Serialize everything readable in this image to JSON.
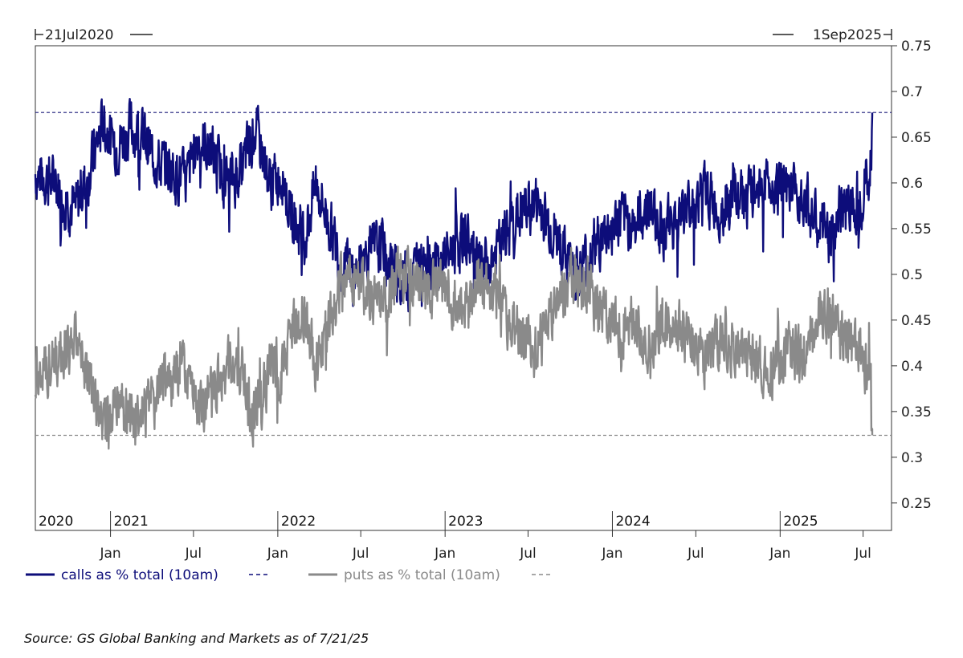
{
  "chart_data": {
    "type": "line",
    "date_range_labels": {
      "start": "21Jul2020",
      "end": "1Sep2025"
    },
    "x_start": "2020-07-21",
    "x_end": "2025-09-01",
    "ylim": [
      0.22,
      0.75
    ],
    "y_ticks": [
      "0.25",
      "0.3",
      "0.35",
      "0.4",
      "0.45",
      "0.5",
      "0.55",
      "0.6",
      "0.65",
      "0.7",
      "0.75"
    ],
    "year_labels": [
      {
        "label": "2020",
        "date": "2020-07-21"
      },
      {
        "label": "2021",
        "date": "2021-01-01"
      },
      {
        "label": "2022",
        "date": "2022-01-01"
      },
      {
        "label": "2023",
        "date": "2023-01-01"
      },
      {
        "label": "2024",
        "date": "2024-01-01"
      },
      {
        "label": "2025",
        "date": "2025-01-01"
      }
    ],
    "month_ticks": [
      {
        "label": "Jan",
        "date": "2021-01-01"
      },
      {
        "label": "Jul",
        "date": "2021-07-01"
      },
      {
        "label": "Jan",
        "date": "2022-01-01"
      },
      {
        "label": "Jul",
        "date": "2022-07-01"
      },
      {
        "label": "Jan",
        "date": "2023-01-01"
      },
      {
        "label": "Jul",
        "date": "2023-07-01"
      },
      {
        "label": "Jan",
        "date": "2024-01-01"
      },
      {
        "label": "Jul",
        "date": "2024-07-01"
      },
      {
        "label": "Jan",
        "date": "2025-01-01"
      },
      {
        "label": "Jul",
        "date": "2025-07-01"
      }
    ],
    "reference_lines": [
      {
        "series": "calls",
        "value": 0.677,
        "color": "#1a1a7a"
      },
      {
        "series": "puts",
        "value": 0.324,
        "color": "#8a8a8a"
      }
    ],
    "series": [
      {
        "name": "calls as % total (10am)",
        "color": "#0d0d7a",
        "points": [
          [
            "2020-07-21",
            0.61
          ],
          [
            "2020-09-01",
            0.6
          ],
          [
            "2020-10-15",
            0.57
          ],
          [
            "2020-11-15",
            0.61
          ],
          [
            "2020-12-15",
            0.665
          ],
          [
            "2021-01-15",
            0.64
          ],
          [
            "2021-02-15",
            0.66
          ],
          [
            "2021-03-15",
            0.65
          ],
          [
            "2021-04-15",
            0.62
          ],
          [
            "2021-05-15",
            0.615
          ],
          [
            "2021-06-15",
            0.6
          ],
          [
            "2021-07-10",
            0.65
          ],
          [
            "2021-08-15",
            0.63
          ],
          [
            "2021-09-15",
            0.6
          ],
          [
            "2021-10-15",
            0.615
          ],
          [
            "2021-11-10",
            0.66
          ],
          [
            "2021-11-25",
            0.64
          ],
          [
            "2021-12-15",
            0.6
          ],
          [
            "2022-01-10",
            0.61
          ],
          [
            "2022-02-01",
            0.56
          ],
          [
            "2022-03-01",
            0.54
          ],
          [
            "2022-03-25",
            0.6
          ],
          [
            "2022-04-20",
            0.56
          ],
          [
            "2022-05-20",
            0.51
          ],
          [
            "2022-06-20",
            0.5
          ],
          [
            "2022-07-20",
            0.525
          ],
          [
            "2022-08-20",
            0.53
          ],
          [
            "2022-09-20",
            0.495
          ],
          [
            "2022-10-20",
            0.5
          ],
          [
            "2022-11-20",
            0.525
          ],
          [
            "2022-12-20",
            0.51
          ],
          [
            "2023-01-20",
            0.53
          ],
          [
            "2023-02-20",
            0.54
          ],
          [
            "2023-03-20",
            0.5
          ],
          [
            "2023-04-20",
            0.52
          ],
          [
            "2023-05-20",
            0.55
          ],
          [
            "2023-06-20",
            0.57
          ],
          [
            "2023-07-20",
            0.58
          ],
          [
            "2023-08-20",
            0.55
          ],
          [
            "2023-09-20",
            0.52
          ],
          [
            "2023-10-20",
            0.5
          ],
          [
            "2023-11-20",
            0.53
          ],
          [
            "2023-12-20",
            0.545
          ],
          [
            "2024-01-20",
            0.56
          ],
          [
            "2024-02-20",
            0.555
          ],
          [
            "2024-03-20",
            0.575
          ],
          [
            "2024-04-20",
            0.55
          ],
          [
            "2024-05-20",
            0.56
          ],
          [
            "2024-06-20",
            0.575
          ],
          [
            "2024-07-20",
            0.59
          ],
          [
            "2024-08-20",
            0.57
          ],
          [
            "2024-09-20",
            0.585
          ],
          [
            "2024-10-20",
            0.58
          ],
          [
            "2024-11-20",
            0.6
          ],
          [
            "2024-12-20",
            0.6
          ],
          [
            "2025-01-20",
            0.585
          ],
          [
            "2025-02-20",
            0.59
          ],
          [
            "2025-03-20",
            0.555
          ],
          [
            "2025-04-20",
            0.54
          ],
          [
            "2025-05-20",
            0.575
          ],
          [
            "2025-06-20",
            0.58
          ],
          [
            "2025-07-10",
            0.6
          ],
          [
            "2025-07-18",
            0.62
          ],
          [
            "2025-07-21",
            0.677
          ]
        ]
      },
      {
        "name": "puts as % total (10am)",
        "color": "#8a8a8a",
        "points": [
          [
            "2020-07-21",
            0.39
          ],
          [
            "2020-09-01",
            0.4
          ],
          [
            "2020-10-15",
            0.43
          ],
          [
            "2020-11-15",
            0.39
          ],
          [
            "2020-12-15",
            0.335
          ],
          [
            "2021-01-15",
            0.36
          ],
          [
            "2021-02-15",
            0.34
          ],
          [
            "2021-03-15",
            0.35
          ],
          [
            "2021-04-15",
            0.38
          ],
          [
            "2021-05-15",
            0.385
          ],
          [
            "2021-06-15",
            0.4
          ],
          [
            "2021-07-10",
            0.35
          ],
          [
            "2021-08-15",
            0.37
          ],
          [
            "2021-09-15",
            0.4
          ],
          [
            "2021-10-15",
            0.385
          ],
          [
            "2021-11-10",
            0.34
          ],
          [
            "2021-11-25",
            0.36
          ],
          [
            "2021-12-15",
            0.4
          ],
          [
            "2022-01-10",
            0.39
          ],
          [
            "2022-02-01",
            0.44
          ],
          [
            "2022-03-01",
            0.46
          ],
          [
            "2022-03-25",
            0.4
          ],
          [
            "2022-04-20",
            0.44
          ],
          [
            "2022-05-20",
            0.49
          ],
          [
            "2022-06-20",
            0.5
          ],
          [
            "2022-07-20",
            0.475
          ],
          [
            "2022-08-20",
            0.47
          ],
          [
            "2022-09-20",
            0.505
          ],
          [
            "2022-10-20",
            0.5
          ],
          [
            "2022-11-20",
            0.475
          ],
          [
            "2022-12-20",
            0.49
          ],
          [
            "2023-01-20",
            0.47
          ],
          [
            "2023-02-20",
            0.46
          ],
          [
            "2023-03-20",
            0.5
          ],
          [
            "2023-04-20",
            0.48
          ],
          [
            "2023-05-20",
            0.45
          ],
          [
            "2023-06-20",
            0.43
          ],
          [
            "2023-07-20",
            0.42
          ],
          [
            "2023-08-20",
            0.45
          ],
          [
            "2023-09-20",
            0.48
          ],
          [
            "2023-10-20",
            0.5
          ],
          [
            "2023-11-20",
            0.47
          ],
          [
            "2023-12-20",
            0.455
          ],
          [
            "2024-01-20",
            0.44
          ],
          [
            "2024-02-20",
            0.445
          ],
          [
            "2024-03-20",
            0.425
          ],
          [
            "2024-04-20",
            0.45
          ],
          [
            "2024-05-20",
            0.44
          ],
          [
            "2024-06-20",
            0.425
          ],
          [
            "2024-07-20",
            0.41
          ],
          [
            "2024-08-20",
            0.43
          ],
          [
            "2024-09-20",
            0.415
          ],
          [
            "2024-10-20",
            0.42
          ],
          [
            "2024-11-20",
            0.4
          ],
          [
            "2024-12-20",
            0.4
          ],
          [
            "2025-01-20",
            0.415
          ],
          [
            "2025-02-20",
            0.41
          ],
          [
            "2025-03-20",
            0.445
          ],
          [
            "2025-04-20",
            0.46
          ],
          [
            "2025-05-20",
            0.425
          ],
          [
            "2025-06-20",
            0.42
          ],
          [
            "2025-07-10",
            0.4
          ],
          [
            "2025-07-18",
            0.38
          ],
          [
            "2025-07-21",
            0.324
          ]
        ]
      }
    ],
    "legend": {
      "placement": "bottom-left",
      "items": [
        {
          "label": "calls as % total (10am)",
          "color": "#0d0d7a"
        },
        {
          "label": "puts as % total (10am)",
          "color": "#8a8a8a"
        }
      ]
    },
    "grid": false
  },
  "source_note": "Source: GS Global Banking and Markets as of 7/21/25"
}
